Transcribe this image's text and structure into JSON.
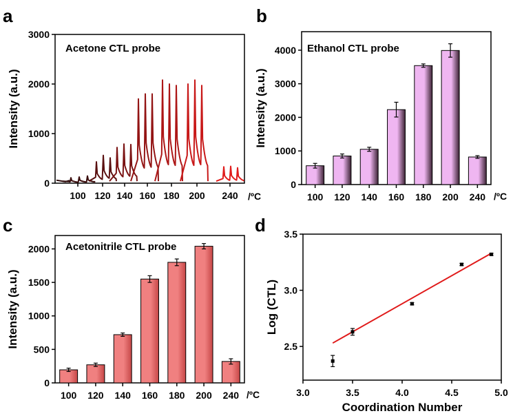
{
  "chart_data": [
    {
      "panel": "a",
      "type": "line",
      "title": "Acetone CTL probe",
      "xlabel": "",
      "ylabel": "Intensity (a.u.)",
      "ylim": [
        0,
        3000
      ],
      "yticks": [
        0,
        1000,
        2000,
        3000
      ],
      "x_tick_labels": [
        "100",
        "120",
        "140",
        "160",
        "180",
        "200",
        "240"
      ],
      "x_unit_label": "/ºC",
      "series": [
        {
          "x": "100",
          "peaks": [
            110,
            125,
            145
          ],
          "color": "#3a0c0c"
        },
        {
          "x": "120",
          "peaks": [
            430,
            560,
            510
          ],
          "color": "#5a1010"
        },
        {
          "x": "140",
          "peaks": [
            720,
            790,
            780
          ],
          "color": "#7a1212"
        },
        {
          "x": "160",
          "peaks": [
            1700,
            1800,
            1800
          ],
          "color": "#931414"
        },
        {
          "x": "180",
          "peaks": [
            2080,
            2000,
            1970
          ],
          "color": "#ad1616"
        },
        {
          "x": "200",
          "peaks": [
            2000,
            2080,
            1970
          ],
          "color": "#c81818"
        },
        {
          "x": "240",
          "peaks": [
            330,
            340,
            310
          ],
          "color": "#e01c1c"
        }
      ]
    },
    {
      "panel": "b",
      "type": "bar",
      "title": "Ethanol CTL probe",
      "xlabel": "",
      "ylabel": "Intensity (a.u.)",
      "ylim": [
        0,
        4550
      ],
      "yticks": [
        0,
        1000,
        2000,
        3000,
        4000
      ],
      "categories": [
        "100",
        "120",
        "140",
        "160",
        "180",
        "200",
        "240"
      ],
      "x_unit_label": "/ºC",
      "values": [
        560,
        850,
        1050,
        2230,
        3540,
        3990,
        820
      ],
      "errors": [
        70,
        60,
        60,
        220,
        50,
        200,
        40
      ],
      "bar_color_light": "#efb6f1",
      "bar_color_dark": "#3c2334"
    },
    {
      "panel": "c",
      "type": "bar",
      "title": "Acetonitrile CTL probe",
      "xlabel": "",
      "ylabel": "Intensity (a.u.)",
      "ylim": [
        0,
        2200
      ],
      "yticks": [
        0,
        500,
        1000,
        1500,
        2000
      ],
      "categories": [
        "100",
        "120",
        "140",
        "160",
        "180",
        "200",
        "240"
      ],
      "x_unit_label": "/ºC",
      "values": [
        195,
        270,
        720,
        1550,
        1800,
        2040,
        320
      ],
      "errors": [
        25,
        25,
        25,
        50,
        50,
        40,
        40
      ],
      "bar_color_light": "#f08080",
      "bar_color_dark": "#c64747"
    },
    {
      "panel": "d",
      "type": "scatter",
      "title": "",
      "xlabel": "Coordination Number",
      "ylabel": "Log (CTL)",
      "xlim": [
        3.0,
        5.0
      ],
      "ylim": [
        2.2,
        3.5
      ],
      "xticks": [
        "3.0",
        "3.5",
        "4.0",
        "4.5",
        "5.0"
      ],
      "yticks": [
        "2.5",
        "3.0",
        "3.5"
      ],
      "points": [
        {
          "x": 3.3,
          "y": 2.37,
          "err": 0.05
        },
        {
          "x": 3.5,
          "y": 2.63,
          "err": 0.03
        },
        {
          "x": 4.1,
          "y": 2.88,
          "err": 0.01
        },
        {
          "x": 4.6,
          "y": 3.23,
          "err": 0.01
        },
        {
          "x": 4.9,
          "y": 3.32,
          "err": 0.01
        }
      ],
      "fit_line": {
        "x": [
          3.3,
          4.9
        ],
        "y": [
          2.53,
          3.33
        ]
      },
      "fit_color": "#e01a1a"
    }
  ]
}
